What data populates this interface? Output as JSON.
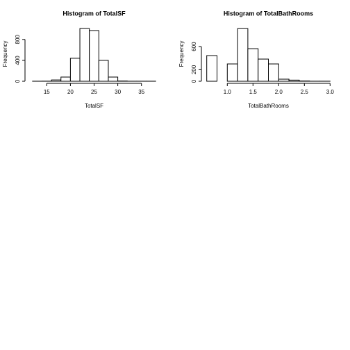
{
  "chart_data": [
    {
      "type": "histogram",
      "title": "Histogram of  TotalSF",
      "xlabel": "TotalSF",
      "ylabel": "Frequency",
      "bins": [
        12,
        14,
        16,
        18,
        20,
        22,
        24,
        26,
        28,
        30,
        32,
        34,
        36,
        38
      ],
      "counts": [
        1,
        2,
        25,
        80,
        440,
        1010,
        970,
        400,
        80,
        5,
        1,
        1,
        1
      ],
      "xlim": [
        11,
        39
      ],
      "xticks": [
        15,
        20,
        25,
        30,
        35
      ],
      "ylim": [
        0,
        1050
      ],
      "yticks": [
        0,
        400,
        800
      ],
      "color": "#ffffff"
    },
    {
      "type": "histogram",
      "title": "Histogram of  TotalBathRooms",
      "xlabel": "TotalBathRooms",
      "ylabel": "Frequency",
      "bins": [
        0.6,
        0.8,
        1.0,
        1.2,
        1.4,
        1.6,
        1.8,
        2.0,
        2.2,
        2.4,
        2.6,
        2.8,
        3.0
      ],
      "counts": [
        444,
        0,
        300,
        912,
        564,
        384,
        300,
        36,
        20,
        5,
        1,
        1
      ],
      "xlim": [
        0.55,
        3.05
      ],
      "xticks": [
        {
          "value": 1.0,
          "label": "1.0"
        },
        {
          "value": 1.5,
          "label": "1.5"
        },
        {
          "value": 2.0,
          "label": "2.0"
        },
        {
          "value": 2.5,
          "label": "2.5"
        },
        {
          "value": 3.0,
          "label": "3.0"
        }
      ],
      "ylim": [
        0,
        950
      ],
      "yticks": [
        0,
        200,
        600
      ],
      "color": "#ffffff"
    }
  ]
}
